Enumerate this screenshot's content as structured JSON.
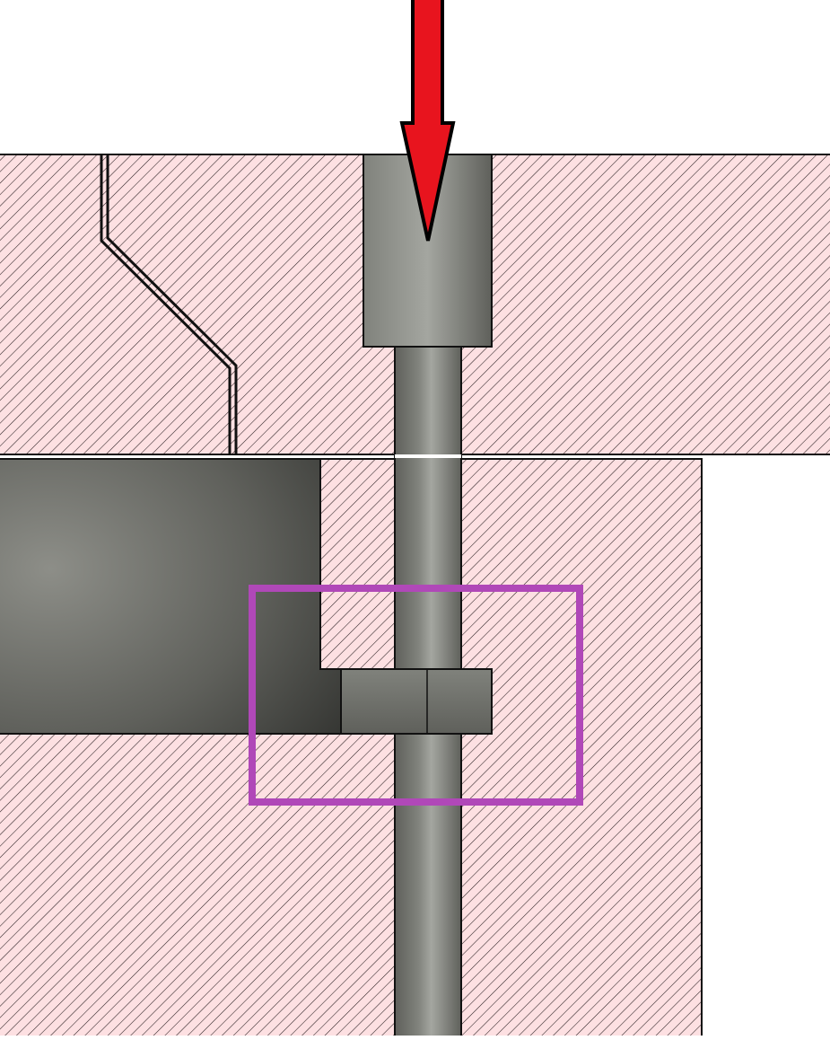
{
  "diagram": {
    "kind": "cross-section",
    "colors": {
      "background": "#ffffff",
      "section_fill": "#fde0e2",
      "hatch_line": "#2a1f22",
      "outline": "#111111",
      "metal_dark": "#5f605b",
      "metal_mid": "#80827c",
      "metal_light": "#a4a6a0",
      "cavity_light": "#8d8e88",
      "cavity_dark": "#2f302d",
      "arrow_fill": "#e8141e",
      "arrow_stroke": "#000000",
      "highlight_box": "#b048b8"
    },
    "parts": [
      {
        "name": "upper-plate",
        "material": "section"
      },
      {
        "name": "lower-block",
        "material": "section"
      },
      {
        "name": "pin-head",
        "material": "metal"
      },
      {
        "name": "vertical-pin",
        "material": "metal"
      },
      {
        "name": "side-cavity",
        "material": "shaded"
      },
      {
        "name": "collar",
        "material": "metal"
      }
    ],
    "annotations": [
      {
        "name": "force-arrow",
        "direction": "down",
        "color": "red"
      },
      {
        "name": "highlight-box",
        "color": "magenta"
      }
    ]
  }
}
